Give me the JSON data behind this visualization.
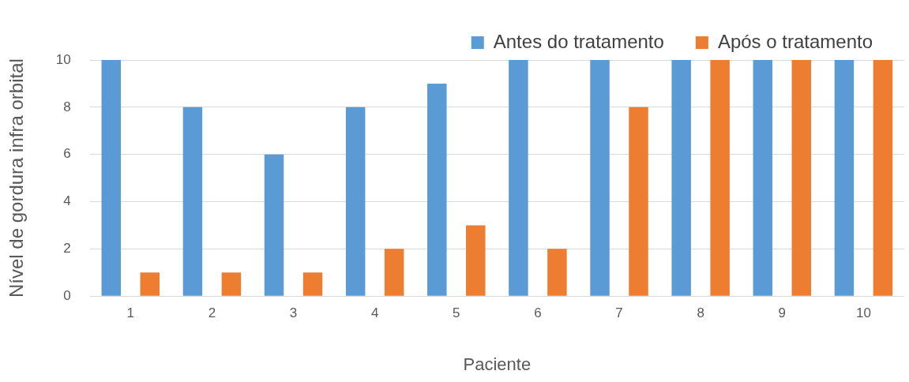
{
  "chart_data": {
    "type": "bar",
    "xlabel": "Paciente",
    "ylabel": "Nível de gordura infra orbital",
    "categories": [
      "1",
      "2",
      "3",
      "4",
      "5",
      "6",
      "7",
      "8",
      "9",
      "10"
    ],
    "series": [
      {
        "name": "Antes do tratamento",
        "color": "#5b9bd5",
        "values": [
          10,
          8,
          6,
          8,
          9,
          10,
          10,
          10,
          10,
          10
        ]
      },
      {
        "name": "Após o tratamento",
        "color": "#ed7d31",
        "values": [
          1,
          1,
          1,
          2,
          3,
          2,
          8,
          10,
          10,
          10
        ]
      }
    ],
    "ylim": [
      0,
      10
    ],
    "yticks": [
      0,
      2,
      4,
      6,
      8,
      10
    ],
    "grid": "y",
    "legend": "top right"
  }
}
